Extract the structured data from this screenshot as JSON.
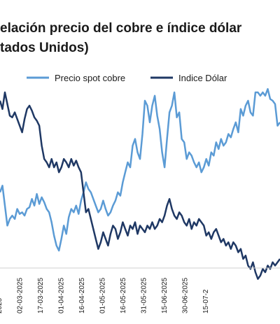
{
  "chart_data": {
    "type": "line",
    "title_line1": "elación precio del cobre e índice dólar",
    "title_line2": "tados Unidos)",
    "x_tick_labels": [
      "2025",
      "02-03-2025",
      "17-03-2025",
      "01-04-2025",
      "16-04-2025",
      "01-05-2025",
      "16-05-2025",
      "31-05-2025",
      "15-06-2025",
      "30-06-2025",
      "15-07-2"
    ],
    "colors": {
      "copper": "#5b9bd5",
      "dollar": "#1f3864"
    },
    "series": [
      {
        "name": "Precio spot cobre",
        "key": "copper",
        "values": [
          [
            0,
            0.4
          ],
          [
            0.5,
            0.44
          ],
          [
            1,
            0.32
          ],
          [
            1.5,
            0.2
          ],
          [
            2,
            0.24
          ],
          [
            2.5,
            0.26
          ],
          [
            3,
            0.24
          ],
          [
            3.5,
            0.3
          ],
          [
            4,
            0.27
          ],
          [
            4.5,
            0.28
          ],
          [
            5,
            0.26
          ],
          [
            5.5,
            0.3
          ],
          [
            6,
            0.31
          ],
          [
            6.5,
            0.36
          ],
          [
            7,
            0.32
          ],
          [
            7.5,
            0.39
          ],
          [
            8,
            0.33
          ],
          [
            8.5,
            0.37
          ],
          [
            9,
            0.34
          ],
          [
            9.5,
            0.3
          ],
          [
            10,
            0.28
          ],
          [
            10.5,
            0.22
          ],
          [
            11,
            0.14
          ],
          [
            11.5,
            0.08
          ],
          [
            12,
            0.05
          ],
          [
            12.5,
            0.12
          ],
          [
            13,
            0.2
          ],
          [
            13.5,
            0.15
          ],
          [
            14,
            0.25
          ],
          [
            14.5,
            0.3
          ],
          [
            15,
            0.28
          ],
          [
            15.5,
            0.32
          ],
          [
            16,
            0.27
          ],
          [
            16.5,
            0.35
          ],
          [
            17,
            0.4
          ],
          [
            17.5,
            0.46
          ],
          [
            18,
            0.42
          ],
          [
            18.5,
            0.4
          ],
          [
            19,
            0.36
          ],
          [
            19.5,
            0.32
          ],
          [
            20,
            0.28
          ],
          [
            20.5,
            0.3
          ],
          [
            21,
            0.35
          ],
          [
            21.5,
            0.3
          ],
          [
            22,
            0.26
          ],
          [
            22.5,
            0.28
          ],
          [
            23,
            0.32
          ],
          [
            23.5,
            0.35
          ],
          [
            24,
            0.4
          ],
          [
            24.5,
            0.38
          ],
          [
            25,
            0.46
          ],
          [
            25.5,
            0.52
          ],
          [
            26,
            0.58
          ],
          [
            26.5,
            0.55
          ],
          [
            27,
            0.68
          ],
          [
            27.5,
            0.72
          ],
          [
            28,
            0.64
          ],
          [
            28.5,
            0.6
          ],
          [
            29,
            0.75
          ],
          [
            29.5,
            0.95
          ],
          [
            30,
            0.92
          ],
          [
            30.5,
            0.82
          ],
          [
            31,
            0.92
          ],
          [
            31.5,
            0.98
          ],
          [
            32,
            0.86
          ],
          [
            32.5,
            0.78
          ],
          [
            33,
            0.64
          ],
          [
            33.5,
            0.55
          ],
          [
            34,
            0.72
          ],
          [
            34.5,
            0.88
          ],
          [
            35,
            0.92
          ],
          [
            35.5,
            1.0
          ],
          [
            36,
            0.85
          ],
          [
            36.5,
            0.88
          ],
          [
            37,
            0.72
          ],
          [
            37.5,
            0.7
          ],
          [
            38,
            0.6
          ],
          [
            38.5,
            0.64
          ],
          [
            39,
            0.62
          ],
          [
            39.5,
            0.58
          ],
          [
            40,
            0.55
          ],
          [
            40.5,
            0.58
          ],
          [
            41,
            0.52
          ],
          [
            41.5,
            0.55
          ],
          [
            42,
            0.6
          ],
          [
            42.5,
            0.56
          ],
          [
            43,
            0.64
          ],
          [
            43.5,
            0.62
          ],
          [
            44,
            0.7
          ],
          [
            44.5,
            0.66
          ],
          [
            45,
            0.72
          ],
          [
            45.5,
            0.68
          ],
          [
            46,
            0.7
          ],
          [
            46.5,
            0.75
          ],
          [
            47,
            0.73
          ],
          [
            47.5,
            0.78
          ],
          [
            48,
            0.82
          ],
          [
            48.5,
            0.76
          ],
          [
            49,
            0.9
          ],
          [
            49.5,
            0.86
          ],
          [
            50,
            0.92
          ],
          [
            50.5,
            0.95
          ],
          [
            51,
            0.88
          ],
          [
            51.5,
            0.86
          ],
          [
            52,
            1.0
          ],
          [
            52.5,
            1.0
          ],
          [
            53,
            0.98
          ],
          [
            53.5,
            1.0
          ],
          [
            54,
            0.98
          ],
          [
            54.5,
            1.02
          ],
          [
            55,
            0.96
          ],
          [
            55.5,
            0.95
          ],
          [
            56,
            0.93
          ],
          [
            56.5,
            0.8
          ],
          [
            57,
            0.82
          ]
        ]
      },
      {
        "name": "Indice Dólar",
        "key": "dollar",
        "values": [
          [
            0,
            0.95
          ],
          [
            0.5,
            0.9
          ],
          [
            1,
            1.0
          ],
          [
            1.5,
            0.93
          ],
          [
            2,
            0.86
          ],
          [
            2.5,
            0.85
          ],
          [
            3,
            0.88
          ],
          [
            3.5,
            0.84
          ],
          [
            4,
            0.8
          ],
          [
            4.5,
            0.76
          ],
          [
            5,
            0.84
          ],
          [
            5.5,
            0.9
          ],
          [
            6,
            0.92
          ],
          [
            6.5,
            0.89
          ],
          [
            7,
            0.85
          ],
          [
            7.5,
            0.83
          ],
          [
            8,
            0.8
          ],
          [
            8.5,
            0.68
          ],
          [
            9,
            0.6
          ],
          [
            9.5,
            0.58
          ],
          [
            10,
            0.55
          ],
          [
            10.5,
            0.6
          ],
          [
            11,
            0.55
          ],
          [
            11.5,
            0.58
          ],
          [
            12,
            0.52
          ],
          [
            12.5,
            0.55
          ],
          [
            13,
            0.6
          ],
          [
            13.5,
            0.58
          ],
          [
            14,
            0.55
          ],
          [
            14.5,
            0.6
          ],
          [
            15,
            0.56
          ],
          [
            15.5,
            0.59
          ],
          [
            16,
            0.55
          ],
          [
            16.5,
            0.52
          ],
          [
            17,
            0.4
          ],
          [
            17.5,
            0.28
          ],
          [
            18,
            0.3
          ],
          [
            18.5,
            0.24
          ],
          [
            19,
            0.18
          ],
          [
            19.5,
            0.12
          ],
          [
            20,
            0.06
          ],
          [
            20.5,
            0.1
          ],
          [
            21,
            0.16
          ],
          [
            21.5,
            0.12
          ],
          [
            22,
            0.08
          ],
          [
            22.5,
            0.15
          ],
          [
            23,
            0.2
          ],
          [
            23.5,
            0.18
          ],
          [
            24,
            0.12
          ],
          [
            24.5,
            0.16
          ],
          [
            25,
            0.22
          ],
          [
            25.5,
            0.18
          ],
          [
            26,
            0.14
          ],
          [
            26.5,
            0.2
          ],
          [
            27,
            0.18
          ],
          [
            27.5,
            0.22
          ],
          [
            28,
            0.15
          ],
          [
            28.5,
            0.2
          ],
          [
            29,
            0.18
          ],
          [
            29.5,
            0.16
          ],
          [
            30,
            0.2
          ],
          [
            30.5,
            0.18
          ],
          [
            31,
            0.22
          ],
          [
            31.5,
            0.18
          ],
          [
            32,
            0.2
          ],
          [
            32.5,
            0.24
          ],
          [
            33,
            0.22
          ],
          [
            33.5,
            0.26
          ],
          [
            34,
            0.32
          ],
          [
            34.5,
            0.36
          ],
          [
            35,
            0.3
          ],
          [
            35.5,
            0.26
          ],
          [
            36,
            0.24
          ],
          [
            36.5,
            0.28
          ],
          [
            37,
            0.26
          ],
          [
            37.5,
            0.22
          ],
          [
            38,
            0.2
          ],
          [
            38.5,
            0.24
          ],
          [
            39,
            0.18
          ],
          [
            39.5,
            0.22
          ],
          [
            40,
            0.2
          ],
          [
            40.5,
            0.24
          ],
          [
            41,
            0.22
          ],
          [
            41.5,
            0.2
          ],
          [
            42,
            0.14
          ],
          [
            42.5,
            0.16
          ],
          [
            43,
            0.12
          ],
          [
            43.5,
            0.16
          ],
          [
            44,
            0.18
          ],
          [
            44.5,
            0.14
          ],
          [
            45,
            0.1
          ],
          [
            45.5,
            0.12
          ],
          [
            46,
            0.08
          ],
          [
            46.5,
            0.1
          ],
          [
            47,
            0.06
          ],
          [
            47.5,
            0.1
          ],
          [
            48,
            0.08
          ],
          [
            48.5,
            0.04
          ],
          [
            49,
            0.06
          ],
          [
            49.5,
            0.0
          ],
          [
            50,
            0.02
          ],
          [
            50.5,
            -0.04
          ],
          [
            51,
            -0.06
          ],
          [
            51.5,
            -0.02
          ],
          [
            52,
            -0.08
          ],
          [
            52.5,
            -0.12
          ],
          [
            53,
            -0.1
          ],
          [
            53.5,
            -0.06
          ],
          [
            54,
            -0.08
          ],
          [
            54.5,
            -0.04
          ],
          [
            55,
            -0.06
          ],
          [
            55.5,
            -0.02
          ],
          [
            56,
            -0.04
          ],
          [
            56.5,
            -0.02
          ],
          [
            57,
            0.0
          ]
        ]
      }
    ],
    "grid": false,
    "legend_position": "top"
  }
}
